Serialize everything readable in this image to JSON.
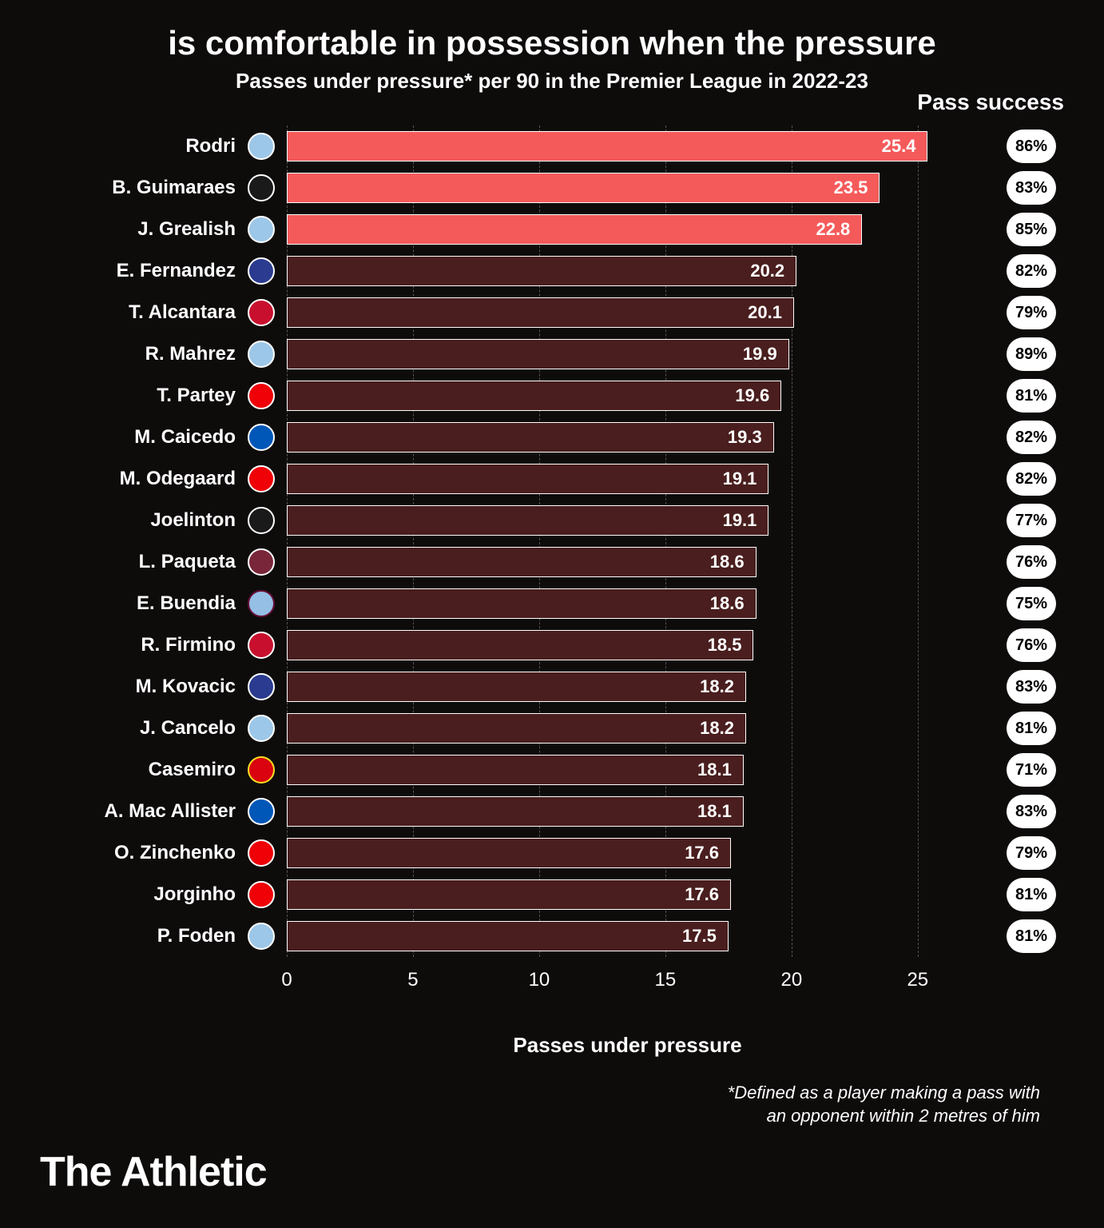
{
  "chart": {
    "type": "horizontal-bar",
    "title": "is comfortable in possession when the pressure",
    "subtitle": "Passes under pressure* per 90 in the Premier League in 2022-23",
    "success_header": "Pass success",
    "x_label": "Passes under pressure",
    "x_max": 27,
    "x_ticks": [
      0,
      5,
      10,
      15,
      20,
      25
    ],
    "footnote_line1": "*Defined as a player making a pass with",
    "footnote_line2": "an opponent within 2 metres of him",
    "brand": "The Athletic",
    "background": "#0e0b0b",
    "text_color": "#ffffff",
    "grid_color": "#5a5252",
    "highlight_color": "#f55a5a",
    "dim_color": "#4a1e1e",
    "bar_border": "#ffffff",
    "pill_bg": "#ffffff",
    "pill_text": "#000000",
    "players": [
      {
        "name": "Rodri",
        "value": 25.4,
        "success": "86%",
        "highlight": true,
        "crest": "#9dc7e8",
        "crest_ring": "#ffffff"
      },
      {
        "name": "B. Guimaraes",
        "value": 23.5,
        "success": "83%",
        "highlight": true,
        "crest": "#1a1a1a",
        "crest_ring": "#ffffff"
      },
      {
        "name": "J. Grealish",
        "value": 22.8,
        "success": "85%",
        "highlight": true,
        "crest": "#9dc7e8",
        "crest_ring": "#ffffff"
      },
      {
        "name": "E. Fernandez",
        "value": 20.2,
        "success": "82%",
        "highlight": false,
        "crest": "#2b3b8f",
        "crest_ring": "#ffffff"
      },
      {
        "name": "T. Alcantara",
        "value": 20.1,
        "success": "79%",
        "highlight": false,
        "crest": "#c8102e",
        "crest_ring": "#ffffff"
      },
      {
        "name": "R. Mahrez",
        "value": 19.9,
        "success": "89%",
        "highlight": false,
        "crest": "#9dc7e8",
        "crest_ring": "#ffffff"
      },
      {
        "name": "T. Partey",
        "value": 19.6,
        "success": "81%",
        "highlight": false,
        "crest": "#ef0107",
        "crest_ring": "#ffffff"
      },
      {
        "name": "M. Caicedo",
        "value": 19.3,
        "success": "82%",
        "highlight": false,
        "crest": "#0057b8",
        "crest_ring": "#ffffff"
      },
      {
        "name": "M. Odegaard",
        "value": 19.1,
        "success": "82%",
        "highlight": false,
        "crest": "#ef0107",
        "crest_ring": "#ffffff"
      },
      {
        "name": "Joelinton",
        "value": 19.1,
        "success": "77%",
        "highlight": false,
        "crest": "#1a1a1a",
        "crest_ring": "#ffffff"
      },
      {
        "name": "L. Paqueta",
        "value": 18.6,
        "success": "76%",
        "highlight": false,
        "crest": "#7a263a",
        "crest_ring": "#ffffff"
      },
      {
        "name": "E. Buendia",
        "value": 18.6,
        "success": "75%",
        "highlight": false,
        "crest": "#95bfe5",
        "crest_ring": "#670e36"
      },
      {
        "name": "R. Firmino",
        "value": 18.5,
        "success": "76%",
        "highlight": false,
        "crest": "#c8102e",
        "crest_ring": "#ffffff"
      },
      {
        "name": "M. Kovacic",
        "value": 18.2,
        "success": "83%",
        "highlight": false,
        "crest": "#2b3b8f",
        "crest_ring": "#ffffff"
      },
      {
        "name": "J. Cancelo",
        "value": 18.2,
        "success": "81%",
        "highlight": false,
        "crest": "#9dc7e8",
        "crest_ring": "#ffffff"
      },
      {
        "name": "Casemiro",
        "value": 18.1,
        "success": "71%",
        "highlight": false,
        "crest": "#da020e",
        "crest_ring": "#fbe122"
      },
      {
        "name": "A. Mac Allister",
        "value": 18.1,
        "success": "83%",
        "highlight": false,
        "crest": "#0057b8",
        "crest_ring": "#ffffff"
      },
      {
        "name": "O. Zinchenko",
        "value": 17.6,
        "success": "79%",
        "highlight": false,
        "crest": "#ef0107",
        "crest_ring": "#ffffff"
      },
      {
        "name": "Jorginho",
        "value": 17.6,
        "success": "81%",
        "highlight": false,
        "crest": "#ef0107",
        "crest_ring": "#ffffff"
      },
      {
        "name": "P. Foden",
        "value": 17.5,
        "success": "81%",
        "highlight": false,
        "crest": "#9dc7e8",
        "crest_ring": "#ffffff"
      }
    ]
  }
}
